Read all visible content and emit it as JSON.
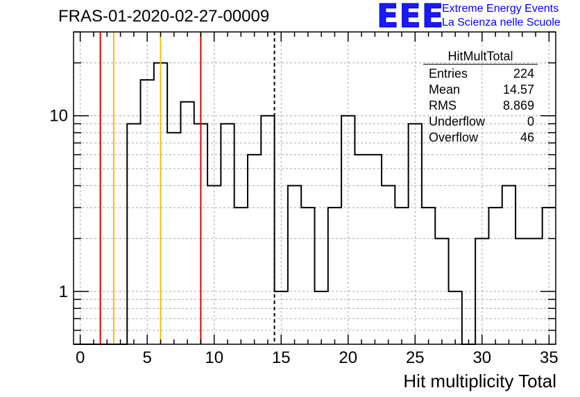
{
  "header": {
    "title": "FRAS-01-2020-02-27-00009",
    "logo_text": "EEE",
    "logo_line1": "Extreme Energy Events",
    "logo_line2": "La Scienza nelle Scuole"
  },
  "stats_box": {
    "title": "HitMultTotal",
    "rows": [
      {
        "label": "Entries",
        "value": "224"
      },
      {
        "label": "Mean",
        "value": "14.57"
      },
      {
        "label": "RMS",
        "value": "8.869"
      },
      {
        "label": "Underflow",
        "value": "0"
      },
      {
        "label": "Overflow",
        "value": "46"
      }
    ]
  },
  "chart_data": {
    "type": "bar",
    "style": "step-histogram",
    "title": "FRAS-01-2020-02-27-00009",
    "xlabel": "Hit multiplicity Total",
    "ylabel": "",
    "xlim": [
      -0.5,
      35.5
    ],
    "ylim": [
      0.5,
      30
    ],
    "yscale": "log",
    "grid": true,
    "x_ticks": [
      0,
      5,
      10,
      15,
      20,
      25,
      30,
      35
    ],
    "y_ticks": [
      1,
      10
    ],
    "bins": [
      0,
      1,
      2,
      3,
      4,
      5,
      6,
      7,
      8,
      9,
      10,
      11,
      12,
      13,
      14,
      15,
      16,
      17,
      18,
      19,
      20,
      21,
      22,
      23,
      24,
      25,
      26,
      27,
      28,
      29,
      30,
      31,
      32,
      33,
      34,
      35
    ],
    "values": [
      0,
      0,
      0,
      0,
      9,
      16,
      20,
      8,
      12,
      9,
      4,
      9,
      3,
      6,
      10,
      1,
      4,
      3,
      1,
      3,
      10,
      6,
      6,
      4,
      3,
      9,
      3,
      2,
      1,
      0,
      2,
      3,
      4,
      2,
      2,
      3
    ],
    "vlines": [
      {
        "x": 1.5,
        "color": "#e00000",
        "style": "solid"
      },
      {
        "x": 2.5,
        "color": "#f0c000",
        "style": "solid"
      },
      {
        "x": 6.0,
        "color": "#f0c000",
        "style": "solid"
      },
      {
        "x": 9.0,
        "color": "#e00000",
        "style": "solid"
      },
      {
        "x": 14.5,
        "color": "#000000",
        "style": "dashed"
      }
    ]
  }
}
